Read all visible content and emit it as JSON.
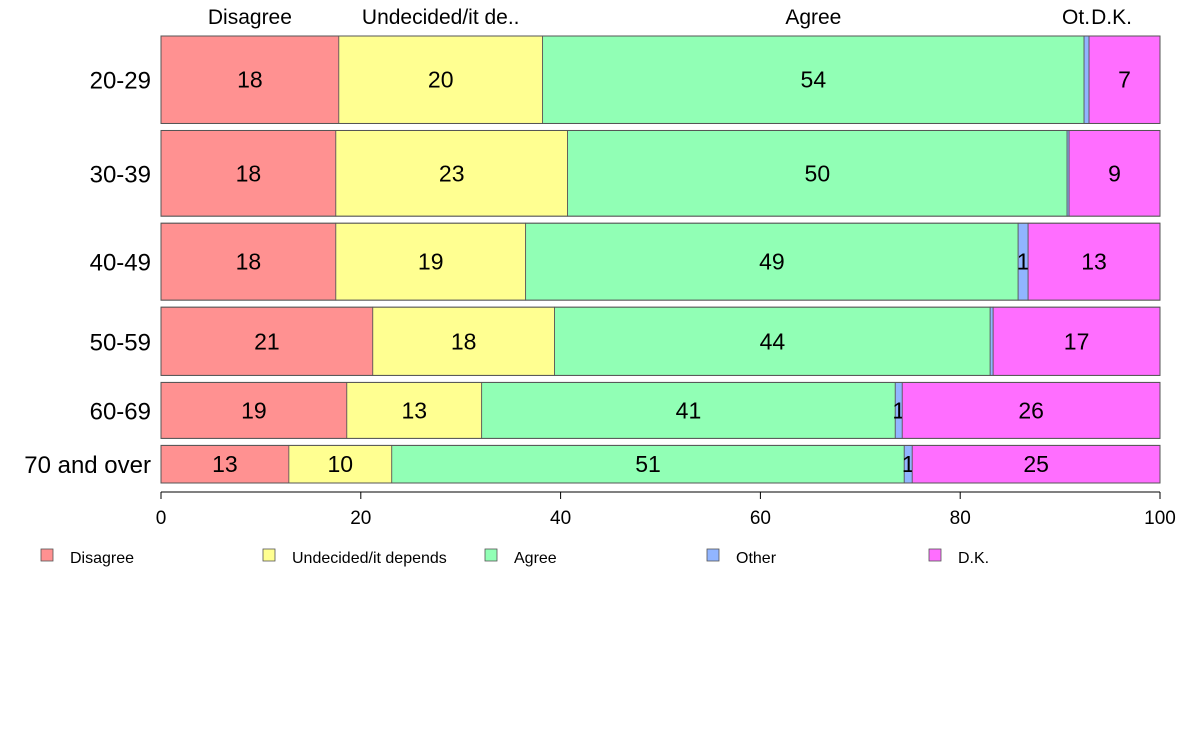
{
  "chart_data": {
    "type": "bar",
    "orientation": "horizontal",
    "stacked": true,
    "categories": [
      "20-29",
      "30-39",
      "40-49",
      "50-59",
      "60-69",
      "70 and over"
    ],
    "series": [
      {
        "name": "Disagree",
        "color": "#ff9191",
        "values": [
          17.8,
          17.5,
          17.5,
          21.2,
          18.6,
          12.8
        ]
      },
      {
        "name": "Undecided/it depends",
        "color": "#ffff91",
        "values": [
          20.4,
          23.2,
          19.0,
          18.2,
          13.5,
          10.3
        ]
      },
      {
        "name": "Agree",
        "color": "#91ffb5",
        "values": [
          54.2,
          50.0,
          49.3,
          43.6,
          41.4,
          51.3
        ]
      },
      {
        "name": "Other",
        "color": "#91b5ff",
        "values": [
          0.5,
          0.2,
          1.0,
          0.3,
          0.7,
          0.8
        ]
      },
      {
        "name": "D.K.",
        "color": "#ff6eff",
        "values": [
          7.1,
          9.1,
          13.2,
          16.7,
          25.8,
          24.8
        ]
      }
    ],
    "data_labels": [
      [
        "18",
        "20",
        "54",
        "",
        "7"
      ],
      [
        "18",
        "23",
        "50",
        "",
        "9"
      ],
      [
        "18",
        "19",
        "49",
        "1",
        "13"
      ],
      [
        "21",
        "18",
        "44",
        "",
        "17"
      ],
      [
        "19",
        "13",
        "41",
        "1",
        "26"
      ],
      [
        "13",
        "10",
        "51",
        "1",
        "25"
      ]
    ],
    "top_labels": [
      "Disagree",
      "Undecided/it de..",
      "Agree",
      "Ot.",
      "D.K."
    ],
    "x_ticks": [
      0,
      20,
      40,
      60,
      80,
      100
    ],
    "xlim": [
      0,
      100
    ],
    "legend_position": "bottom",
    "bar_weights": [
      1.0,
      0.98,
      0.88,
      0.78,
      0.64,
      0.43
    ]
  }
}
